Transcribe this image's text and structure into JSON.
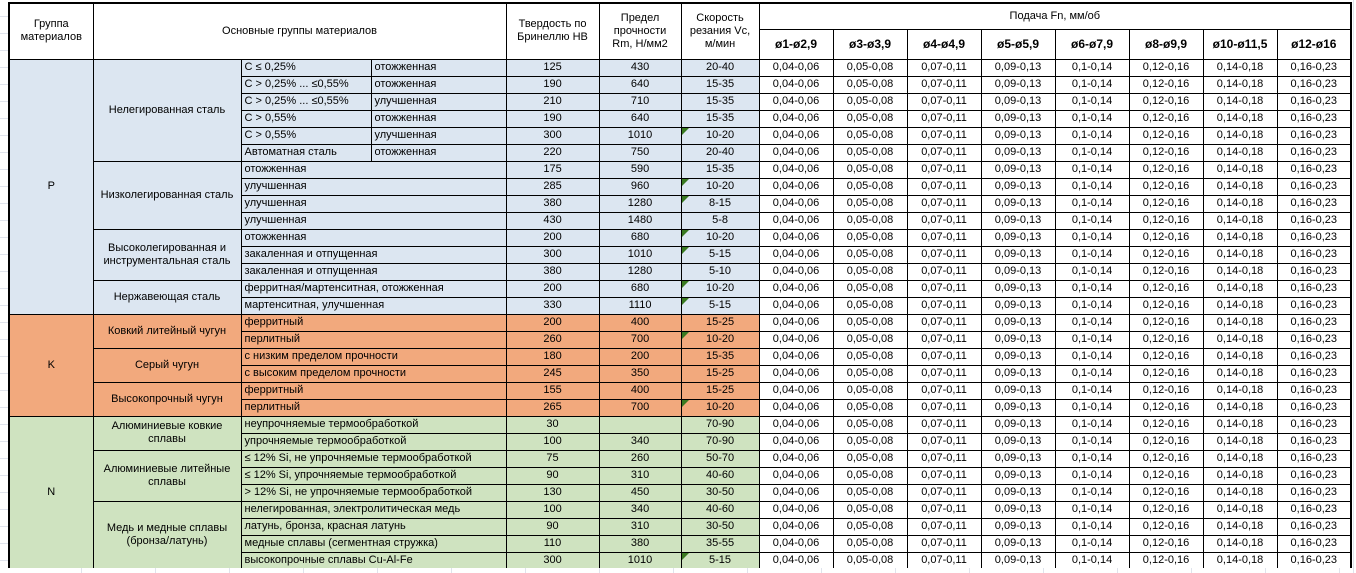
{
  "colors": {
    "steel_blue": "#dce6f1",
    "cast_iron_orange": "#f2a97d",
    "nonferrous_green": "#cfe3c0",
    "flag_green": "#3a7a21",
    "grid_line": "#dfe3ec",
    "border": "#000000"
  },
  "table": {
    "header": {
      "group_col": "Группа материалов",
      "main_groups_col": "Основные группы материалов",
      "hardness_col": "Твердость по Бринеллю HB",
      "strength_col": "Предел прочности Rm, Н/мм2",
      "speed_col": "Скорость резания Vc, м/мин",
      "feed_title": "Подача Fn, мм/об",
      "feed_cols": [
        "ø1-ø2,9",
        "ø3-ø3,9",
        "ø4-ø4,9",
        "ø5-ø5,9",
        "ø6-ø7,9",
        "ø8-ø9,9",
        "ø10-ø11,5",
        "ø12-ø16"
      ]
    },
    "feed_values": [
      "0,04-0,06",
      "0,05-0,08",
      "0,07-0,11",
      "0,09-0,13",
      "0,1-0,14",
      "0,12-0,16",
      "0,14-0,18",
      "0,16-0,23"
    ],
    "groups": [
      {
        "code": "P",
        "color": "#dce6f1",
        "families": [
          {
            "name": "Нелегированная сталь",
            "rows": [
              {
                "sub1": "C ≤ 0,25%",
                "sub2": "отожженная",
                "hb": "125",
                "rm": "430",
                "vc": "20-40",
                "flag": false
              },
              {
                "sub1": "C > 0,25% ... ≤0,55%",
                "sub2": "отожженная",
                "hb": "190",
                "rm": "640",
                "vc": "15-35",
                "flag": false
              },
              {
                "sub1": "C > 0,25% ... ≤0,55%",
                "sub2": "улучшенная",
                "hb": "210",
                "rm": "710",
                "vc": "15-35",
                "flag": false
              },
              {
                "sub1": "C > 0,55%",
                "sub2": "отожженная",
                "hb": "190",
                "rm": "640",
                "vc": "15-35",
                "flag": false
              },
              {
                "sub1": "C > 0,55%",
                "sub2": "улучшенная",
                "hb": "300",
                "rm": "1010",
                "vc": "10-20",
                "flag": true
              },
              {
                "sub1": "Автоматная сталь",
                "sub2": "отожженная",
                "hb": "220",
                "rm": "750",
                "vc": "20-40",
                "flag": false
              }
            ]
          },
          {
            "name": "Низколегированная сталь",
            "rows": [
              {
                "desc": "отожженная",
                "hb": "175",
                "rm": "590",
                "vc": "15-35",
                "flag": false
              },
              {
                "desc": "улучшенная",
                "hb": "285",
                "rm": "960",
                "vc": "10-20",
                "flag": true
              },
              {
                "desc": "улучшенная",
                "hb": "380",
                "rm": "1280",
                "vc": "8-15",
                "flag": true
              },
              {
                "desc": "улучшенная",
                "hb": "430",
                "rm": "1480",
                "vc": "5-8",
                "flag": false
              }
            ]
          },
          {
            "name": "Высоколегированная и инструментальная сталь",
            "rows": [
              {
                "desc": "отожженная",
                "hb": "200",
                "rm": "680",
                "vc": "10-20",
                "flag": true
              },
              {
                "desc": "закаленная и отпущенная",
                "hb": "300",
                "rm": "1010",
                "vc": "5-15",
                "flag": true
              },
              {
                "desc": "закаленная и отпущенная",
                "hb": "380",
                "rm": "1280",
                "vc": "5-10",
                "flag": false
              }
            ]
          },
          {
            "name": "Нержавеющая сталь",
            "rows": [
              {
                "desc": "ферритная/мартенситная, отожженная",
                "hb": "200",
                "rm": "680",
                "vc": "10-20",
                "flag": true
              },
              {
                "desc": "мартенситная, улучшенная",
                "hb": "330",
                "rm": "1110",
                "vc": "5-15",
                "flag": true
              }
            ]
          }
        ]
      },
      {
        "code": "K",
        "color": "#f2a97d",
        "families": [
          {
            "name": "Ковкий литейный чугун",
            "rows": [
              {
                "desc": "ферритный",
                "hb": "200",
                "rm": "400",
                "vc": "15-25",
                "flag": false
              },
              {
                "desc": "перлитный",
                "hb": "260",
                "rm": "700",
                "vc": "10-20",
                "flag": true
              }
            ]
          },
          {
            "name": "Серый чугун",
            "rows": [
              {
                "desc": "с низким пределом прочности",
                "hb": "180",
                "rm": "200",
                "vc": "15-35",
                "flag": false
              },
              {
                "desc": "с высоким пределом прочности",
                "hb": "245",
                "rm": "350",
                "vc": "15-25",
                "flag": false
              }
            ]
          },
          {
            "name": "Высокопрочный чугун",
            "rows": [
              {
                "desc": "ферритный",
                "hb": "155",
                "rm": "400",
                "vc": "15-25",
                "flag": false
              },
              {
                "desc": "перлитный",
                "hb": "265",
                "rm": "700",
                "vc": "10-20",
                "flag": true
              }
            ]
          }
        ]
      },
      {
        "code": "N",
        "color": "#cfe3c0",
        "families": [
          {
            "name": "Алюминиевые ковкие сплавы",
            "rows": [
              {
                "desc": "неупрочняемые термообработкой",
                "hb": "30",
                "rm": "",
                "vc": "70-90",
                "flag": false
              },
              {
                "desc": "упрочняемые термообработкой",
                "hb": "100",
                "rm": "340",
                "vc": "70-90",
                "flag": false
              }
            ]
          },
          {
            "name": "Алюминиевые литейные сплавы",
            "rows": [
              {
                "desc": "≤ 12% Si, не упрочняемые термообработкой",
                "hb": "75",
                "rm": "260",
                "vc": "50-70",
                "flag": false
              },
              {
                "desc": "≤ 12% Si, упрочняемые термообработкой",
                "hb": "90",
                "rm": "310",
                "vc": "40-60",
                "flag": false
              },
              {
                "desc": "> 12% Si, не упрочняемые термообработкой",
                "hb": "130",
                "rm": "450",
                "vc": "30-50",
                "flag": false
              }
            ]
          },
          {
            "name": "Медь и медные сплавы (бронза/латунь)",
            "rows": [
              {
                "desc": "нелегированная, электролитическая медь",
                "hb": "100",
                "rm": "340",
                "vc": "40-60",
                "flag": false
              },
              {
                "desc": "латунь, бронза, красная латунь",
                "hb": "90",
                "rm": "310",
                "vc": "30-50",
                "flag": false
              },
              {
                "desc": "медные сплавы (сегментная стружка)",
                "hb": "110",
                "rm": "380",
                "vc": "35-55",
                "flag": false
              },
              {
                "desc": "высокопрочные сплавы Cu-Al-Fe",
                "hb": "300",
                "rm": "1010",
                "vc": "5-15",
                "flag": true
              }
            ]
          }
        ]
      }
    ]
  }
}
